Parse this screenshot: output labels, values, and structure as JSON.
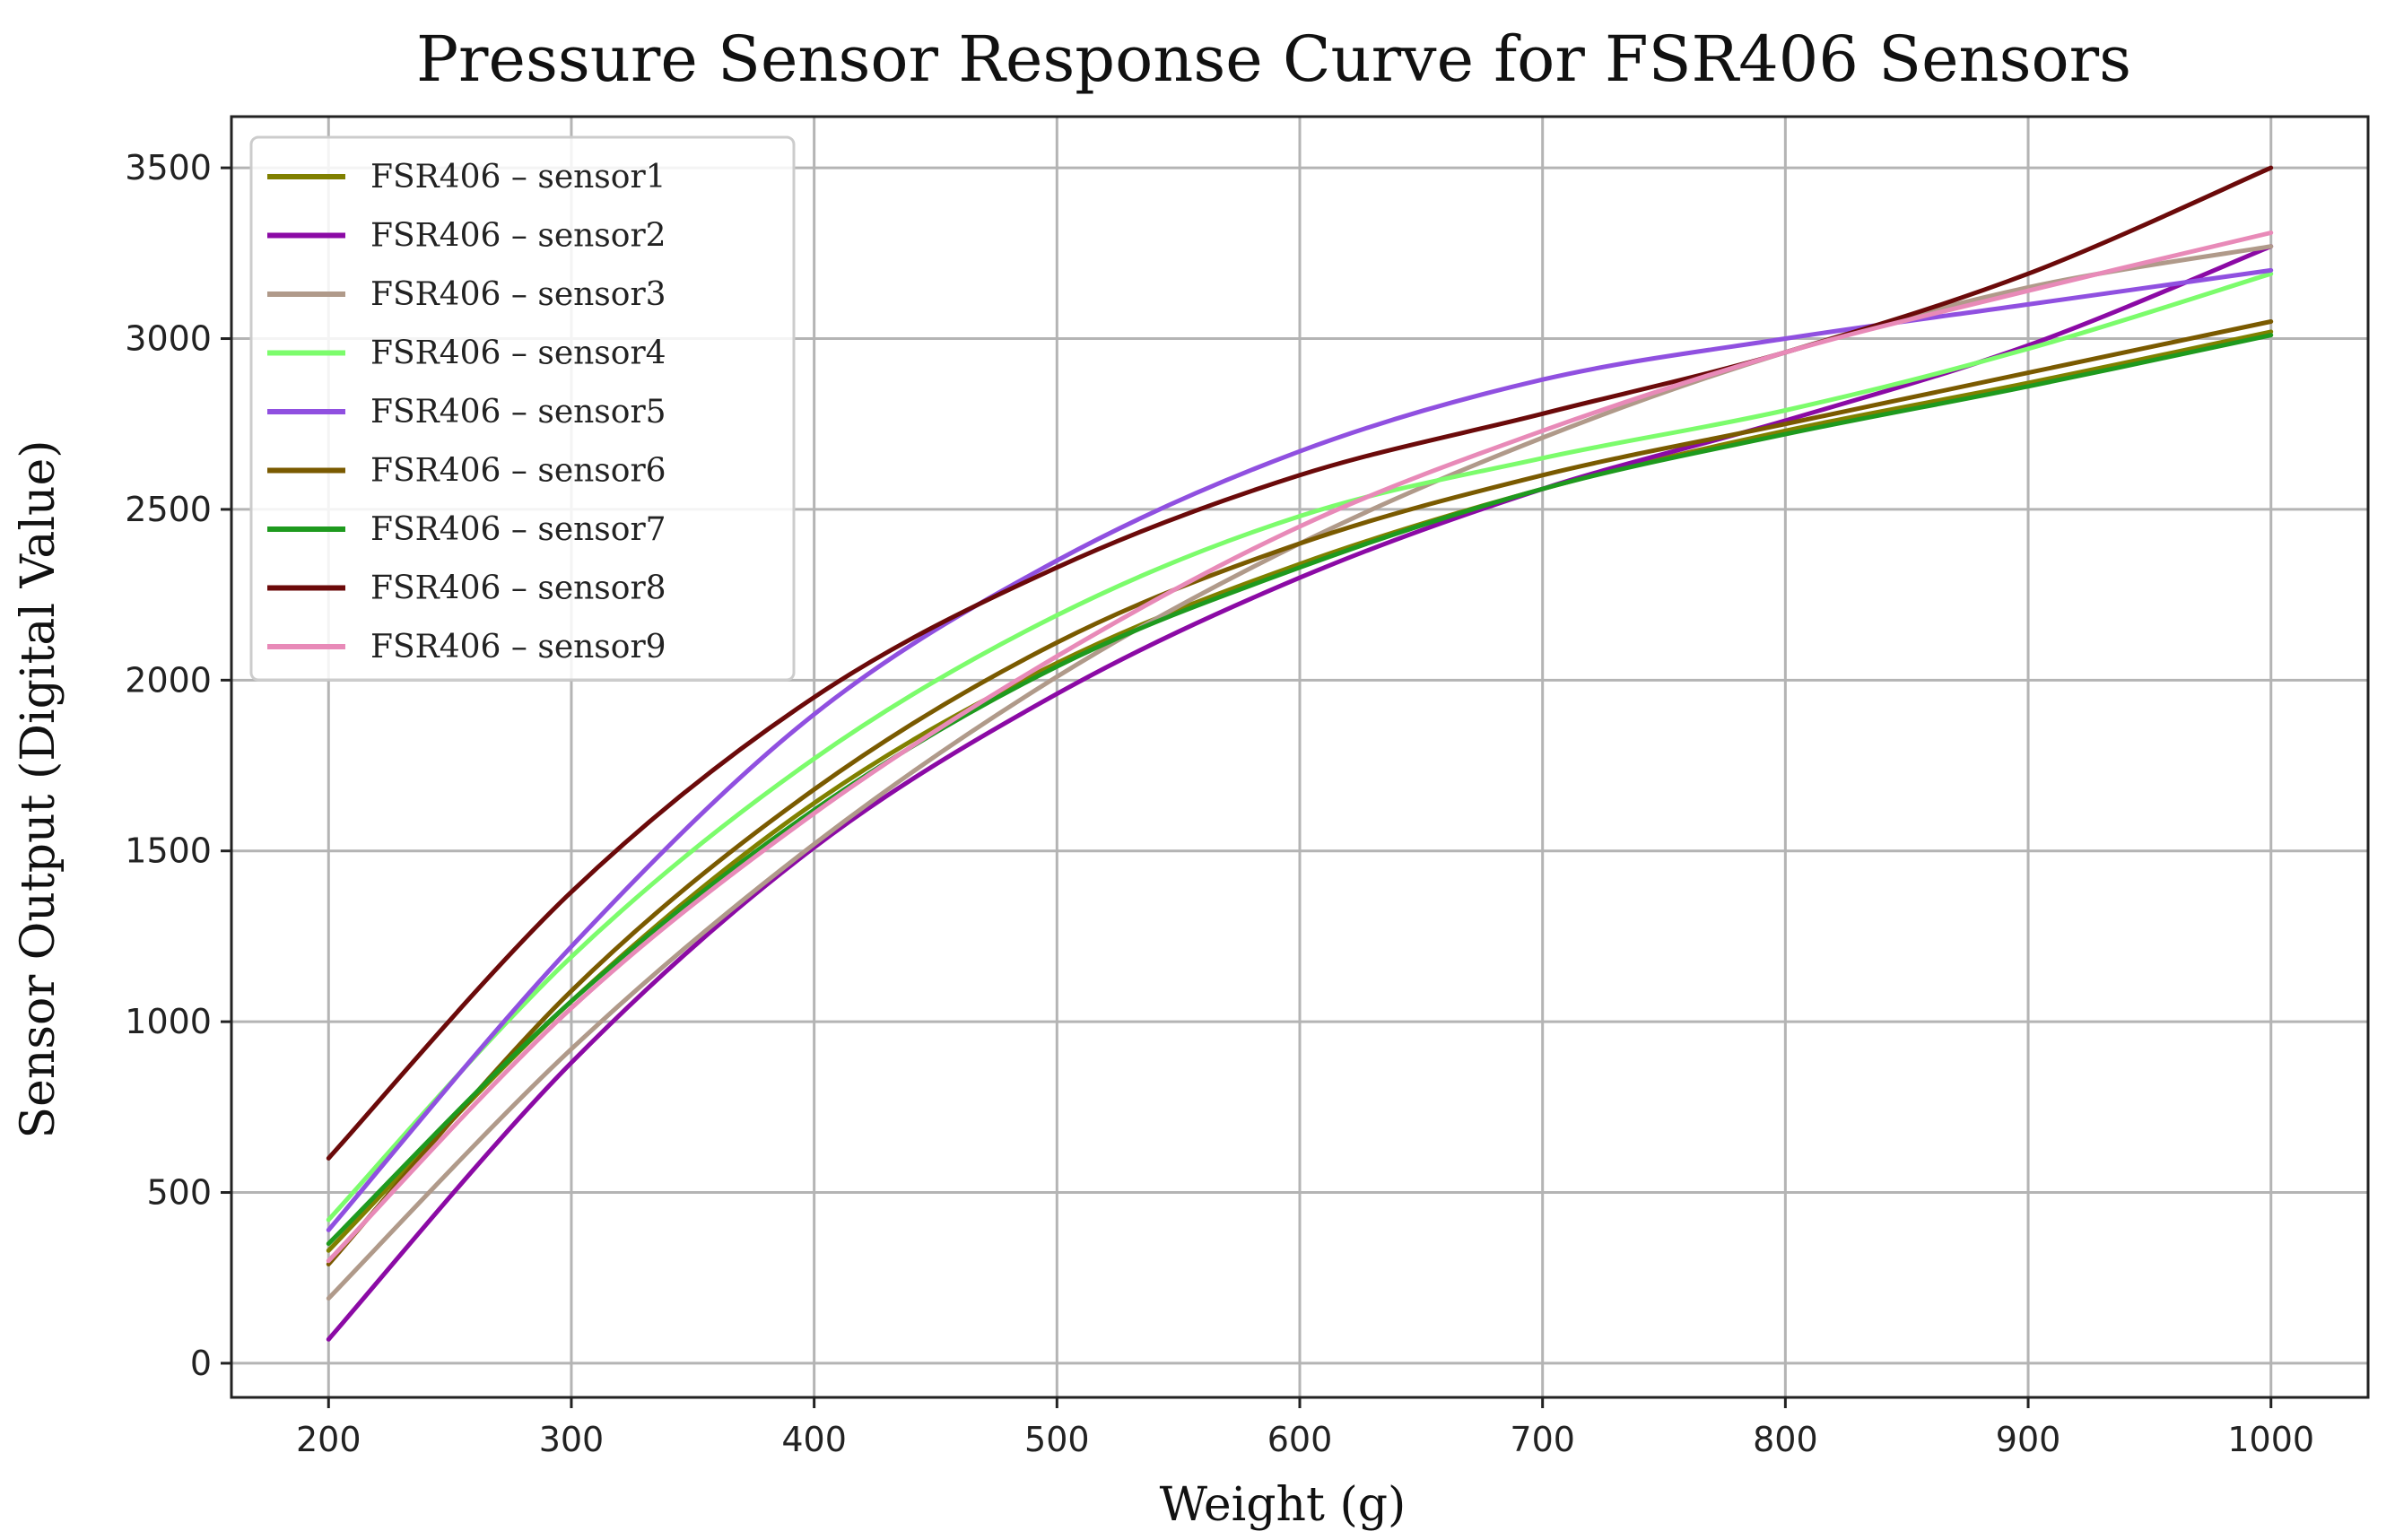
{
  "chart_data": {
    "type": "line",
    "title": "Pressure Sensor Response Curve for FSR406 Sensors",
    "xlabel": "Weight (g)",
    "ylabel": "Sensor Output (Digital Value)",
    "xlim": [
      160,
      1040
    ],
    "ylim": [
      -100,
      3650
    ],
    "xticks": [
      200,
      300,
      400,
      500,
      600,
      700,
      800,
      900,
      1000
    ],
    "yticks": [
      0,
      500,
      1000,
      1500,
      2000,
      2500,
      3000,
      3500
    ],
    "grid": true,
    "legend_position": "top-left",
    "x": [
      200,
      300,
      400,
      500,
      600,
      700,
      800,
      900,
      1000
    ],
    "series": [
      {
        "name": "FSR406 – sensor1",
        "color": "#808000",
        "values": [
          330,
          1060,
          1640,
          2050,
          2340,
          2560,
          2730,
          2870,
          3020
        ]
      },
      {
        "name": "FSR406 – sensor2",
        "color": "#8b0aa5",
        "values": [
          70,
          880,
          1510,
          1960,
          2300,
          2560,
          2760,
          2980,
          3270
        ]
      },
      {
        "name": "FSR406 – sensor3",
        "color": "#b09a8a",
        "values": [
          190,
          920,
          1520,
          2010,
          2400,
          2710,
          2960,
          3150,
          3270
        ]
      },
      {
        "name": "FSR406 – sensor4",
        "color": "#7cfc6c",
        "values": [
          420,
          1190,
          1770,
          2190,
          2480,
          2650,
          2790,
          2970,
          3190
        ]
      },
      {
        "name": "FSR406 – sensor5",
        "color": "#9050e0",
        "values": [
          390,
          1220,
          1900,
          2350,
          2670,
          2880,
          3000,
          3100,
          3200
        ]
      },
      {
        "name": "FSR406 – sensor6",
        "color": "#7a5a00",
        "values": [
          290,
          1090,
          1680,
          2110,
          2400,
          2600,
          2750,
          2900,
          3050
        ]
      },
      {
        "name": "FSR406 – sensor7",
        "color": "#1e9a1e",
        "values": [
          350,
          1060,
          1620,
          2040,
          2330,
          2560,
          2720,
          2860,
          3010
        ]
      },
      {
        "name": "FSR406 – sensor8",
        "color": "#6b0a0a",
        "values": [
          600,
          1380,
          1950,
          2330,
          2600,
          2780,
          2960,
          3190,
          3500
        ]
      },
      {
        "name": "FSR406 – sensor9",
        "color": "#e88ab8",
        "values": [
          300,
          1040,
          1610,
          2070,
          2450,
          2730,
          2960,
          3140,
          3310
        ]
      }
    ]
  }
}
